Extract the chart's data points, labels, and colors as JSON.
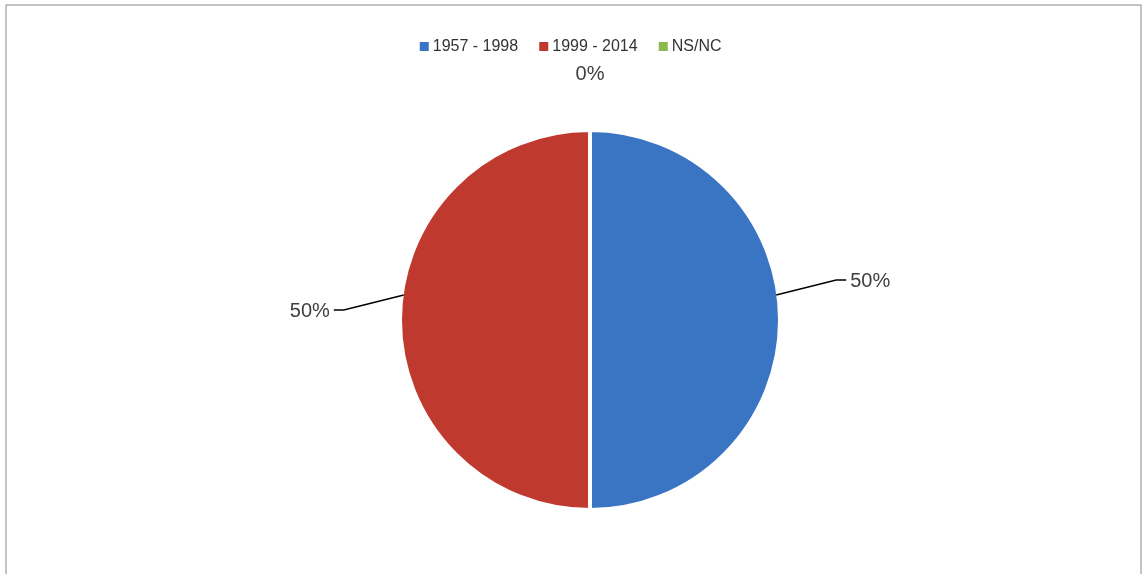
{
  "chart_data": {
    "type": "pie",
    "categories": [
      "1957 - 1998",
      "1999 - 2014",
      "NS/NC"
    ],
    "values": [
      50,
      50,
      0
    ],
    "colors": [
      "#3a75c4",
      "#c0392f",
      "#8db84a"
    ],
    "value_labels": [
      "50%",
      "50%",
      "0%"
    ],
    "legend": "top"
  }
}
